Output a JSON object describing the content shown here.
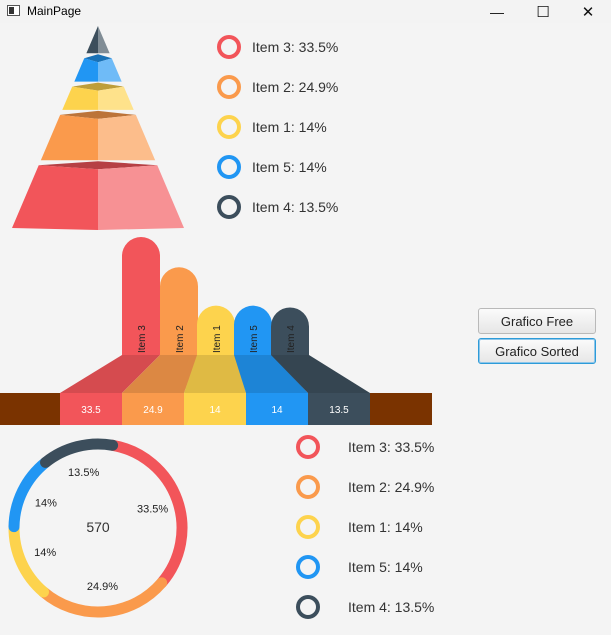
{
  "window": {
    "title": "MainPage",
    "minimize_glyph": "—",
    "maximize_glyph": "☐",
    "close_glyph": "✕"
  },
  "colors": {
    "item3": "#f2555a",
    "item2": "#fa9a4c",
    "item1": "#fdd34d",
    "item5": "#2196f3",
    "item4": "#3c4e5c",
    "strip": "#7a3300"
  },
  "legend_top": [
    {
      "label": "Item 3: 33.5%",
      "color": "#f2555a"
    },
    {
      "label": "Item 2: 24.9%",
      "color": "#fa9a4c"
    },
    {
      "label": "Item 1: 14%",
      "color": "#fdd34d"
    },
    {
      "label": "Item 5: 14%",
      "color": "#2196f3"
    },
    {
      "label": "Item 4: 13.5%",
      "color": "#3c4e5c"
    }
  ],
  "legend_bottom": [
    {
      "label": "Item 3: 33.5%",
      "color": "#f2555a"
    },
    {
      "label": "Item 2: 24.9%",
      "color": "#fa9a4c"
    },
    {
      "label": "Item 1: 14%",
      "color": "#fdd34d"
    },
    {
      "label": "Item 5: 14%",
      "color": "#2196f3"
    },
    {
      "label": "Item 4: 13.5%",
      "color": "#3c4e5c"
    }
  ],
  "buttons": {
    "free": "Grafico Free",
    "sorted": "Grafico Sorted"
  },
  "chart_data": [
    {
      "type": "pyramid",
      "categories": [
        "Item 3",
        "Item 2",
        "Item 1",
        "Item 5",
        "Item 4"
      ],
      "values": [
        33.5,
        24.9,
        14,
        14,
        13.5
      ]
    },
    {
      "type": "bar",
      "categories": [
        "Item 3",
        "Item 2",
        "Item 1",
        "Item 5",
        "Item 4"
      ],
      "values": [
        33.5,
        24.9,
        14,
        14,
        13.5
      ],
      "value_labels": [
        "33.5",
        "24.9",
        "14",
        "14",
        "13.5"
      ]
    },
    {
      "type": "pie",
      "style": "donut",
      "center_label": "570",
      "categories": [
        "Item 3",
        "Item 2",
        "Item 1",
        "Item 5",
        "Item 4"
      ],
      "values": [
        33.5,
        24.9,
        14,
        14,
        13.5
      ],
      "value_labels": [
        "33.5%",
        "24.9%",
        "14%",
        "14%",
        "13.5%"
      ]
    }
  ]
}
